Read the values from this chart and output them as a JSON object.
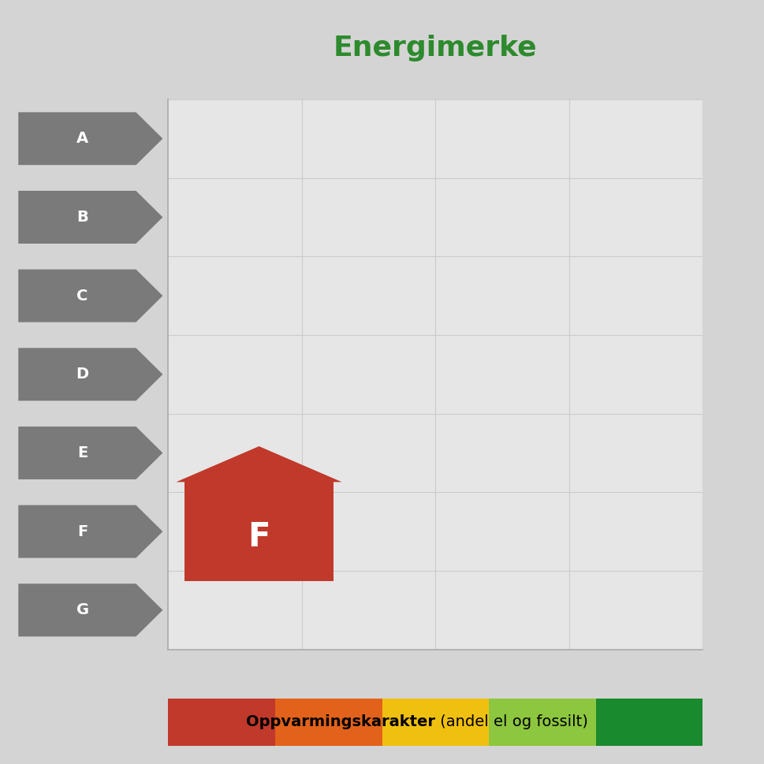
{
  "title": "Energimerke",
  "title_color": "#2d8a2d",
  "title_fontsize": 26,
  "background_color": "#d4d4d4",
  "plot_bg_color": "#e6e6e6",
  "energy_labels": [
    "A",
    "B",
    "C",
    "D",
    "E",
    "F",
    "G"
  ],
  "arrow_color": "#7a7a7a",
  "arrow_text_color": "#ffffff",
  "highlighted_label": "F",
  "house_color": "#c0392b",
  "house_text_color": "#ffffff",
  "xlabel_bold": "Oppvarmingskarakter",
  "xlabel_normal": " (andel el og fossilt)",
  "color_bar_colors": [
    "#c0392b",
    "#e2621b",
    "#f0c010",
    "#8dc63f",
    "#1a8a2e"
  ],
  "grid_color": "#cccccc",
  "axis_color": "#aaaaaa"
}
